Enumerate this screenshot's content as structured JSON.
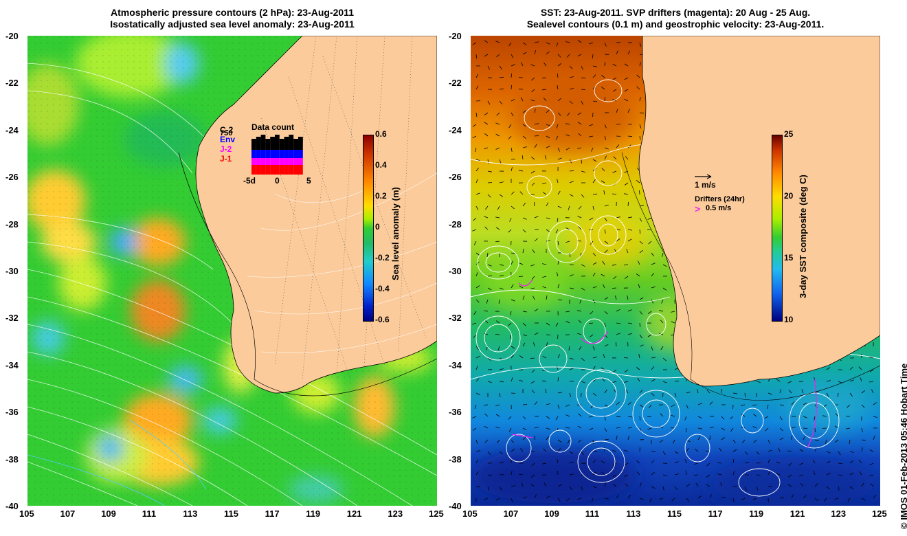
{
  "left_panel": {
    "title_line1": "Atmospheric pressure contours (2 hPa): 23-Aug-2011",
    "title_line2": "Isostatically adjusted sea level anomaly: 23-Aug-2011",
    "colorbar": {
      "label": "Sea level anomaly (m)",
      "ticks": [
        "0.6",
        "0.4",
        "0.2",
        "0",
        "-0.2",
        "-0.4",
        "-0.6"
      ],
      "range": [
        -0.6,
        0.6
      ]
    },
    "data_count": {
      "title": "Data count",
      "value_label": "750",
      "satellites": [
        {
          "name": "C-2",
          "color": "#000000"
        },
        {
          "name": "Env",
          "color": "#0000ff"
        },
        {
          "name": "J-2",
          "color": "#ff00ff"
        },
        {
          "name": "J-1",
          "color": "#ff0000"
        }
      ],
      "x_ticks": [
        "-5d",
        "0",
        "5"
      ]
    }
  },
  "right_panel": {
    "title_line1": "SST: 23-Aug-2011. SVP drifters (magenta): 20 Aug - 25 Aug.",
    "title_line2": "Sealevel contours (0.1 m) and geostrophic velocity: 23-Aug-2011.",
    "colorbar": {
      "label": "3-day SST composite (deg C)",
      "ticks": [
        "25",
        "20",
        "15",
        "10"
      ],
      "range": [
        10,
        25
      ]
    },
    "velocity_legend": {
      "arrow_label": "1 m/s",
      "drifters_label": "Drifters (24hr)",
      "drifters_speed": "0.5 m/s"
    }
  },
  "axes": {
    "y_ticks": [
      "-20",
      "-22",
      "-24",
      "-26",
      "-28",
      "-30",
      "-32",
      "-34",
      "-36",
      "-38",
      "-40"
    ],
    "x_ticks": [
      "105",
      "107",
      "109",
      "111",
      "113",
      "115",
      "117",
      "119",
      "121",
      "123",
      "125"
    ],
    "lon_range": [
      105,
      125
    ],
    "lat_range": [
      -40,
      -20
    ]
  },
  "credit": "© IMOS 01-Feb-2013 05:46 Hobart Time"
}
